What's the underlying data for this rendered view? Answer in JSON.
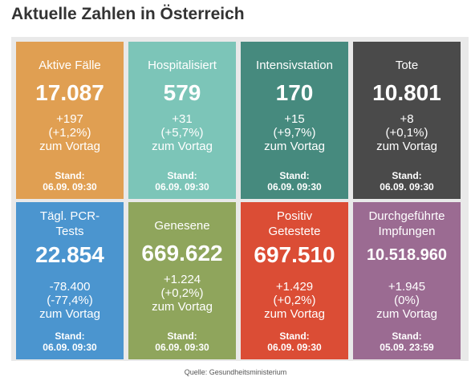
{
  "title": "Aktuelle Zahlen in Österreich",
  "tiles": [
    {
      "label": [
        "Aktive Fälle"
      ],
      "value": "17.087",
      "change": [
        "+197",
        "(+1,2%)",
        "zum Vortag"
      ],
      "stand_label": "Stand:",
      "stand_date": "06.09. 09:30",
      "color": "#e09f52"
    },
    {
      "label": [
        "Hospitalisiert"
      ],
      "value": "579",
      "change": [
        "+31",
        "(+5,7%)",
        "zum Vortag"
      ],
      "stand_label": "Stand:",
      "stand_date": "06.09. 09:30",
      "color": "#7cc5b8"
    },
    {
      "label": [
        "Intensivstation"
      ],
      "value": "170",
      "change": [
        "+15",
        "(+9,7%)",
        "zum Vortag"
      ],
      "stand_label": "Stand:",
      "stand_date": "06.09. 09:30",
      "color": "#468a7e"
    },
    {
      "label": [
        "Tote"
      ],
      "value": "10.801",
      "change": [
        "+8",
        "(+0,1%)",
        "zum Vortag"
      ],
      "stand_label": "Stand:",
      "stand_date": "06.09. 09:30",
      "color": "#4a4a4a"
    },
    {
      "label": [
        "Tägl. PCR-",
        "Tests"
      ],
      "value": "22.854",
      "change": [
        "-78.400",
        "(-77,4%)",
        "zum Vortag"
      ],
      "stand_label": "Stand:",
      "stand_date": "06.09. 09:30",
      "color": "#4b95cf"
    },
    {
      "label": [
        "Genesene"
      ],
      "value": "669.622",
      "change": [
        "+1.224",
        "(+0,2%)",
        "zum Vortag"
      ],
      "stand_label": "Stand:",
      "stand_date": "06.09. 09:30",
      "color": "#8fa55c"
    },
    {
      "label": [
        "Positiv",
        "Getestete"
      ],
      "value": "697.510",
      "change": [
        "+1.429",
        "(+0,2%)",
        "zum Vortag"
      ],
      "stand_label": "Stand:",
      "stand_date": "06.09. 09:30",
      "color": "#db4d35"
    },
    {
      "label": [
        "Durchgeführte",
        "Impfungen"
      ],
      "value": "10.518.960",
      "change": [
        "+1.945",
        "(0%)",
        "zum Vortag"
      ],
      "stand_label": "Stand:",
      "stand_date": "05.09. 23:59",
      "color": "#9b6b92"
    }
  ],
  "footer": "Quelle: Gesundheitsministerium"
}
